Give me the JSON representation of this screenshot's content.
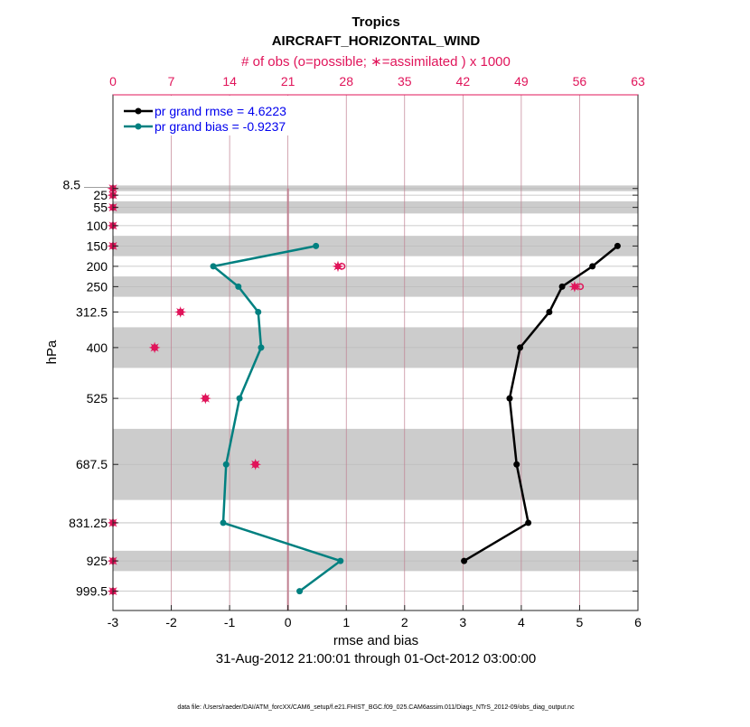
{
  "chart_data": {
    "type": "line",
    "title": "Tropics",
    "subtitle": "AIRCRAFT_HORIZONTAL_WIND",
    "top_axis_label": "# of obs (o=possible; ∗=assimilated ) x 1000",
    "xlabel": "rmse and bias",
    "ylabel": "hPa",
    "date_range": "31-Aug-2012 21:00:01 through 01-Oct-2012 03:00:00",
    "footer": "data file: /Users/raeder/DAI/ATM_forcXX/CAM6_setup/f.e21.FHIST_BGC.f09_025.CAM6assim.011/Diags_NTrS_2012-09/obs_diag_output.nc",
    "xlim": [
      -3,
      6
    ],
    "xticks": [
      -3,
      -2,
      -1,
      0,
      1,
      2,
      3,
      4,
      5,
      6
    ],
    "top_xlim": [
      0,
      63
    ],
    "top_xticks": [
      0,
      7,
      14,
      21,
      28,
      35,
      42,
      49,
      56,
      63
    ],
    "ylim": [
      -222,
      1047
    ],
    "levels": [
      8.5,
      25,
      55,
      100,
      150,
      200,
      250,
      312.5,
      400,
      525,
      687.5,
      831.25,
      925,
      999.5
    ],
    "level_labels": [
      "8.5",
      "25",
      "55",
      "100",
      "150",
      "200",
      "250",
      "312.5",
      "400",
      "525",
      "687.5",
      "831.25",
      "925",
      "999.5"
    ],
    "shaded_layers_hPa": [
      [
        1,
        15
      ],
      [
        40,
        70
      ],
      [
        125,
        175
      ],
      [
        225,
        275
      ],
      [
        350,
        450
      ],
      [
        600,
        775
      ],
      [
        900,
        950
      ]
    ],
    "legend": {
      "placement": "top-left",
      "entries": [
        "pr grand rmse = 4.6223",
        "pr grand bias = -0.9237"
      ]
    },
    "series": [
      {
        "name": "rmse",
        "color": "#000000",
        "levels": [
          150,
          200,
          250,
          312.5,
          400,
          525,
          687.5,
          831.25,
          925
        ],
        "values": [
          5.65,
          5.22,
          4.7,
          4.48,
          3.98,
          3.8,
          3.92,
          4.12,
          3.02
        ]
      },
      {
        "name": "bias",
        "color": "#008080",
        "levels": [
          150,
          200,
          250,
          312.5,
          400,
          525,
          687.5,
          831.25,
          925,
          999.5
        ],
        "values": [
          0.48,
          -1.28,
          -0.85,
          -0.51,
          -0.46,
          -0.83,
          -1.06,
          -1.11,
          0.9,
          0.2
        ]
      }
    ],
    "obs_possible": [
      0,
      0,
      0,
      0,
      0,
      27.5,
      56.1,
      8.1,
      5.0,
      11.1,
      17.1,
      0,
      0,
      0
    ],
    "obs_assimilated": [
      0,
      0,
      0,
      0,
      0,
      27.0,
      55.4,
      8.1,
      5.0,
      11.1,
      17.1,
      0,
      0,
      0
    ],
    "colors": {
      "obs": "#e0145a",
      "grid": "#c08090",
      "band": "#cccccc"
    }
  }
}
